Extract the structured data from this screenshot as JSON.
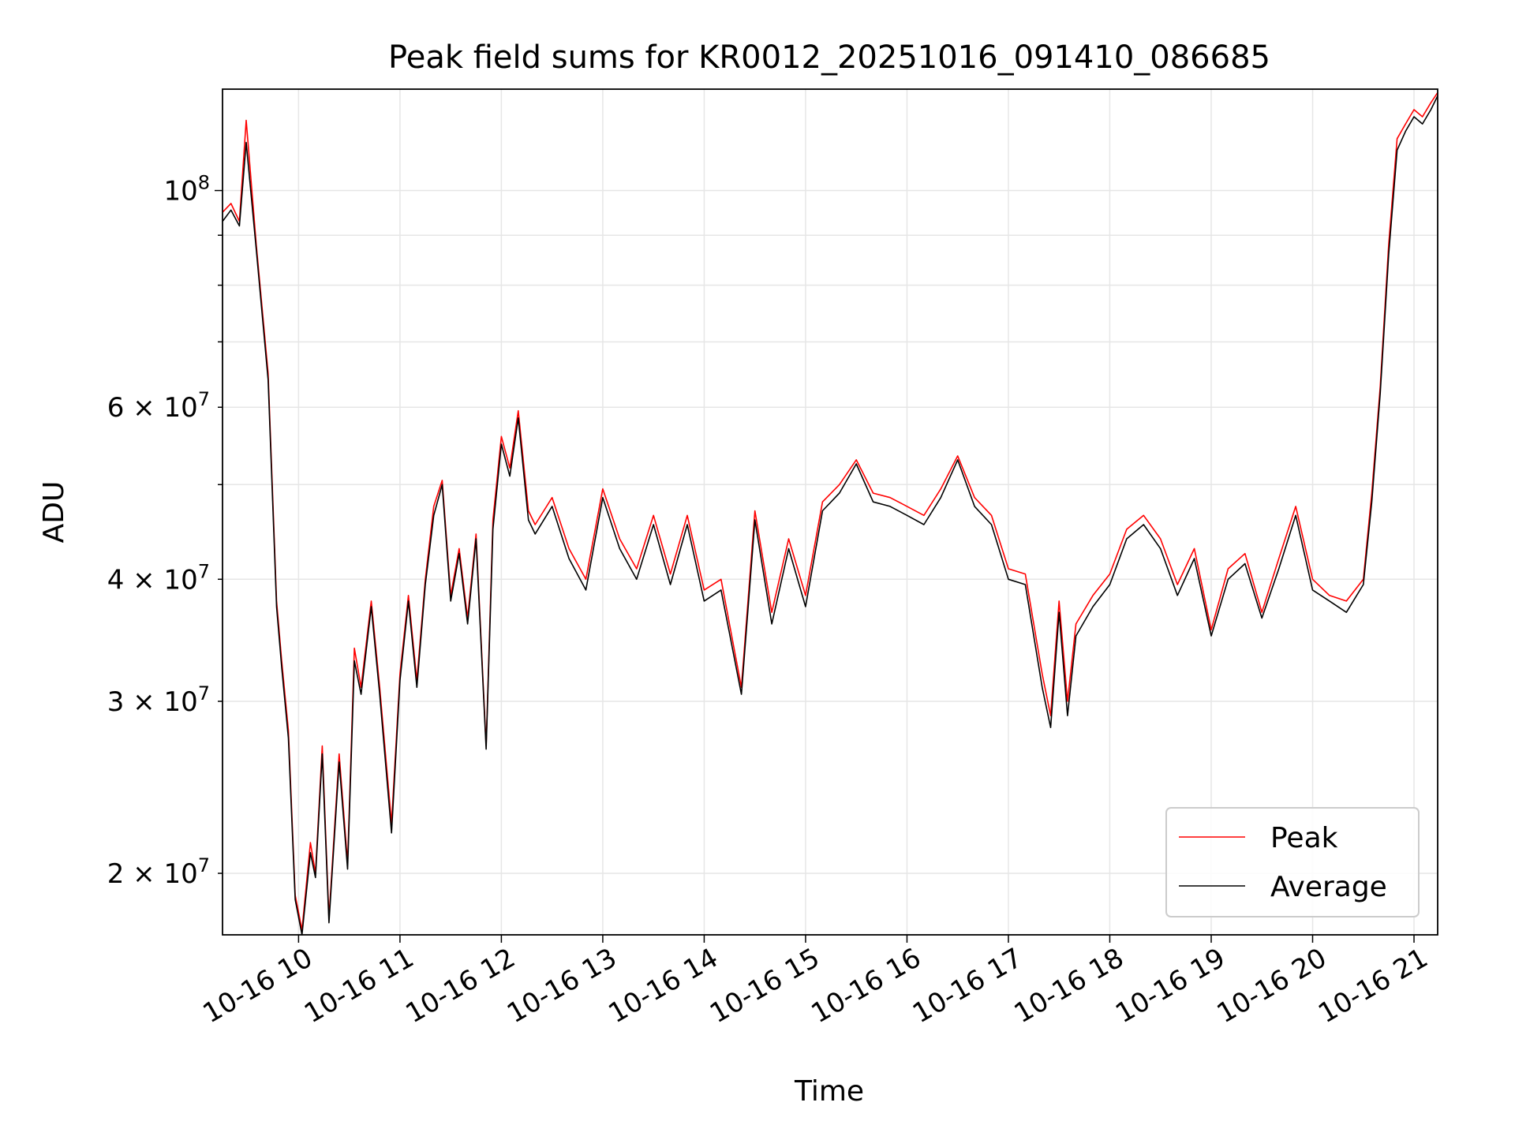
{
  "chart_data": {
    "type": "line",
    "title": "Peak field sums for KR0012_20251016_091410_086685",
    "xlabel": "Time",
    "ylabel": "ADU",
    "y_scale": "log",
    "ylim": [
      17300000,
      127000000
    ],
    "xlim": [
      "2025-10-16 09:15",
      "2025-10-16 21:14"
    ],
    "grid": true,
    "legend_position": "lower right",
    "x_tick_labels": [
      "10-16 10",
      "10-16 11",
      "10-16 12",
      "10-16 13",
      "10-16 14",
      "10-16 15",
      "10-16 16",
      "10-16 17",
      "10-16 18",
      "10-16 19",
      "10-16 20",
      "10-16 21"
    ],
    "x_tick_times": [
      "2025-10-16 10:00",
      "2025-10-16 11:00",
      "2025-10-16 12:00",
      "2025-10-16 13:00",
      "2025-10-16 14:00",
      "2025-10-16 15:00",
      "2025-10-16 16:00",
      "2025-10-16 17:00",
      "2025-10-16 18:00",
      "2025-10-16 19:00",
      "2025-10-16 20:00",
      "2025-10-16 21:00"
    ],
    "y_major_ticks": [
      {
        "value": 100000000,
        "base": "10",
        "exp": "8"
      }
    ],
    "y_minor_ticks": [
      {
        "value": 20000000,
        "mant": "2",
        "base": "10",
        "exp": "7"
      },
      {
        "value": 30000000,
        "mant": "3",
        "base": "10",
        "exp": "7"
      },
      {
        "value": 40000000,
        "mant": "4",
        "base": "10",
        "exp": "7"
      },
      {
        "value": 50000000,
        "mant": "",
        "base": "",
        "exp": ""
      },
      {
        "value": 60000000,
        "mant": "6",
        "base": "10",
        "exp": "7"
      },
      {
        "value": 70000000,
        "mant": "",
        "base": "",
        "exp": ""
      },
      {
        "value": 80000000,
        "mant": "",
        "base": "",
        "exp": ""
      },
      {
        "value": 90000000,
        "mant": "",
        "base": "",
        "exp": ""
      }
    ],
    "colors": {
      "peak": "#ff0000",
      "average": "#000000"
    },
    "series": [
      {
        "name": "Peak",
        "color": "#ff0000",
        "x": [
          "2025-10-16 09:15",
          "2025-10-16 09:20",
          "2025-10-16 09:25",
          "2025-10-16 09:29",
          "2025-10-16 09:35",
          "2025-10-16 09:42",
          "2025-10-16 09:47",
          "2025-10-16 09:50",
          "2025-10-16 09:54",
          "2025-10-16 09:58",
          "2025-10-16 10:02",
          "2025-10-16 10:07",
          "2025-10-16 10:10",
          "2025-10-16 10:14",
          "2025-10-16 10:18",
          "2025-10-16 10:24",
          "2025-10-16 10:29",
          "2025-10-16 10:33",
          "2025-10-16 10:37",
          "2025-10-16 10:43",
          "2025-10-16 10:48",
          "2025-10-16 10:55",
          "2025-10-16 11:00",
          "2025-10-16 11:05",
          "2025-10-16 11:10",
          "2025-10-16 11:15",
          "2025-10-16 11:20",
          "2025-10-16 11:25",
          "2025-10-16 11:30",
          "2025-10-16 11:35",
          "2025-10-16 11:40",
          "2025-10-16 11:45",
          "2025-10-16 11:51",
          "2025-10-16 11:55",
          "2025-10-16 12:00",
          "2025-10-16 12:05",
          "2025-10-16 12:10",
          "2025-10-16 12:16",
          "2025-10-16 12:20",
          "2025-10-16 12:30",
          "2025-10-16 12:40",
          "2025-10-16 12:50",
          "2025-10-16 13:00",
          "2025-10-16 13:10",
          "2025-10-16 13:20",
          "2025-10-16 13:30",
          "2025-10-16 13:40",
          "2025-10-16 13:50",
          "2025-10-16 14:00",
          "2025-10-16 14:10",
          "2025-10-16 14:22",
          "2025-10-16 14:30",
          "2025-10-16 14:40",
          "2025-10-16 14:50",
          "2025-10-16 15:00",
          "2025-10-16 15:10",
          "2025-10-16 15:20",
          "2025-10-16 15:30",
          "2025-10-16 15:40",
          "2025-10-16 15:50",
          "2025-10-16 16:00",
          "2025-10-16 16:10",
          "2025-10-16 16:20",
          "2025-10-16 16:30",
          "2025-10-16 16:40",
          "2025-10-16 16:50",
          "2025-10-16 17:00",
          "2025-10-16 17:10",
          "2025-10-16 17:20",
          "2025-10-16 17:25",
          "2025-10-16 17:30",
          "2025-10-16 17:35",
          "2025-10-16 17:40",
          "2025-10-16 17:50",
          "2025-10-16 18:00",
          "2025-10-16 18:10",
          "2025-10-16 18:20",
          "2025-10-16 18:30",
          "2025-10-16 18:40",
          "2025-10-16 18:50",
          "2025-10-16 19:00",
          "2025-10-16 19:10",
          "2025-10-16 19:20",
          "2025-10-16 19:30",
          "2025-10-16 19:40",
          "2025-10-16 19:50",
          "2025-10-16 20:00",
          "2025-10-16 20:10",
          "2025-10-16 20:20",
          "2025-10-16 20:30",
          "2025-10-16 20:35",
          "2025-10-16 20:40",
          "2025-10-16 20:45",
          "2025-10-16 20:50",
          "2025-10-16 20:55",
          "2025-10-16 21:00",
          "2025-10-16 21:05",
          "2025-10-16 21:10",
          "2025-10-16 21:14"
        ],
        "values": [
          95000000,
          97000000,
          93000000,
          118000000,
          88000000,
          65000000,
          38000000,
          33000000,
          28000000,
          19000000,
          17500000,
          21500000,
          20000000,
          27000000,
          18000000,
          26500000,
          20500000,
          34000000,
          31000000,
          38000000,
          31000000,
          22500000,
          32000000,
          38500000,
          31500000,
          40000000,
          47500000,
          50500000,
          38500000,
          43000000,
          36500000,
          44500000,
          27000000,
          46000000,
          56000000,
          52000000,
          59500000,
          47000000,
          45500000,
          48500000,
          43000000,
          40000000,
          49500000,
          44000000,
          41000000,
          46500000,
          40500000,
          46500000,
          39000000,
          40000000,
          31000000,
          47000000,
          37000000,
          44000000,
          38500000,
          48000000,
          50000000,
          53000000,
          49000000,
          48500000,
          47500000,
          46500000,
          49500000,
          53500000,
          48500000,
          46500000,
          41000000,
          40500000,
          32000000,
          29000000,
          38000000,
          30000000,
          36000000,
          38500000,
          40500000,
          45000000,
          46500000,
          44000000,
          39500000,
          43000000,
          35500000,
          41000000,
          42500000,
          37000000,
          42000000,
          47500000,
          40000000,
          38500000,
          38000000,
          40000000,
          49000000,
          63000000,
          88000000,
          113000000,
          117000000,
          121000000,
          119000000,
          123000000,
          126000000
        ]
      },
      {
        "name": "Average",
        "color": "#000000",
        "x": [
          "2025-10-16 09:15",
          "2025-10-16 09:20",
          "2025-10-16 09:25",
          "2025-10-16 09:29",
          "2025-10-16 09:35",
          "2025-10-16 09:42",
          "2025-10-16 09:47",
          "2025-10-16 09:50",
          "2025-10-16 09:54",
          "2025-10-16 09:58",
          "2025-10-16 10:02",
          "2025-10-16 10:07",
          "2025-10-16 10:10",
          "2025-10-16 10:14",
          "2025-10-16 10:18",
          "2025-10-16 10:24",
          "2025-10-16 10:29",
          "2025-10-16 10:33",
          "2025-10-16 10:37",
          "2025-10-16 10:43",
          "2025-10-16 10:48",
          "2025-10-16 10:55",
          "2025-10-16 11:00",
          "2025-10-16 11:05",
          "2025-10-16 11:10",
          "2025-10-16 11:15",
          "2025-10-16 11:20",
          "2025-10-16 11:25",
          "2025-10-16 11:30",
          "2025-10-16 11:35",
          "2025-10-16 11:40",
          "2025-10-16 11:45",
          "2025-10-16 11:51",
          "2025-10-16 11:55",
          "2025-10-16 12:00",
          "2025-10-16 12:05",
          "2025-10-16 12:10",
          "2025-10-16 12:16",
          "2025-10-16 12:20",
          "2025-10-16 12:30",
          "2025-10-16 12:40",
          "2025-10-16 12:50",
          "2025-10-16 13:00",
          "2025-10-16 13:10",
          "2025-10-16 13:20",
          "2025-10-16 13:30",
          "2025-10-16 13:40",
          "2025-10-16 13:50",
          "2025-10-16 14:00",
          "2025-10-16 14:10",
          "2025-10-16 14:22",
          "2025-10-16 14:30",
          "2025-10-16 14:40",
          "2025-10-16 14:50",
          "2025-10-16 15:00",
          "2025-10-16 15:10",
          "2025-10-16 15:20",
          "2025-10-16 15:30",
          "2025-10-16 15:40",
          "2025-10-16 15:50",
          "2025-10-16 16:00",
          "2025-10-16 16:10",
          "2025-10-16 16:20",
          "2025-10-16 16:30",
          "2025-10-16 16:40",
          "2025-10-16 16:50",
          "2025-10-16 17:00",
          "2025-10-16 17:10",
          "2025-10-16 17:20",
          "2025-10-16 17:25",
          "2025-10-16 17:30",
          "2025-10-16 17:35",
          "2025-10-16 17:40",
          "2025-10-16 17:50",
          "2025-10-16 18:00",
          "2025-10-16 18:10",
          "2025-10-16 18:20",
          "2025-10-16 18:30",
          "2025-10-16 18:40",
          "2025-10-16 18:50",
          "2025-10-16 19:00",
          "2025-10-16 19:10",
          "2025-10-16 19:20",
          "2025-10-16 19:30",
          "2025-10-16 19:40",
          "2025-10-16 19:50",
          "2025-10-16 20:00",
          "2025-10-16 20:10",
          "2025-10-16 20:20",
          "2025-10-16 20:30",
          "2025-10-16 20:35",
          "2025-10-16 20:40",
          "2025-10-16 20:45",
          "2025-10-16 20:50",
          "2025-10-16 20:55",
          "2025-10-16 21:00",
          "2025-10-16 21:05",
          "2025-10-16 21:10",
          "2025-10-16 21:14"
        ],
        "values": [
          93000000,
          95500000,
          92000000,
          112000000,
          87000000,
          64000000,
          37500000,
          32500000,
          27500000,
          18800000,
          17300000,
          21000000,
          19800000,
          26500000,
          17800000,
          26000000,
          20200000,
          33000000,
          30500000,
          37500000,
          30500000,
          22000000,
          31500000,
          38000000,
          31000000,
          39500000,
          46500000,
          50000000,
          38000000,
          42500000,
          36000000,
          44000000,
          26800000,
          45000000,
          55000000,
          51000000,
          58500000,
          46000000,
          44500000,
          47500000,
          42000000,
          39000000,
          48500000,
          43000000,
          40000000,
          45500000,
          39500000,
          45500000,
          38000000,
          39000000,
          30500000,
          46000000,
          36000000,
          43000000,
          37500000,
          47000000,
          49000000,
          52500000,
          48000000,
          47500000,
          46500000,
          45500000,
          48500000,
          53000000,
          47500000,
          45500000,
          40000000,
          39500000,
          31000000,
          28200000,
          37000000,
          29000000,
          35000000,
          37500000,
          39500000,
          44000000,
          45500000,
          43000000,
          38500000,
          42000000,
          35000000,
          40000000,
          41500000,
          36500000,
          41000000,
          46500000,
          39000000,
          38000000,
          37000000,
          39500000,
          48000000,
          62000000,
          86000000,
          110000000,
          115000000,
          119000000,
          117000000,
          121000000,
          125000000
        ]
      }
    ]
  }
}
